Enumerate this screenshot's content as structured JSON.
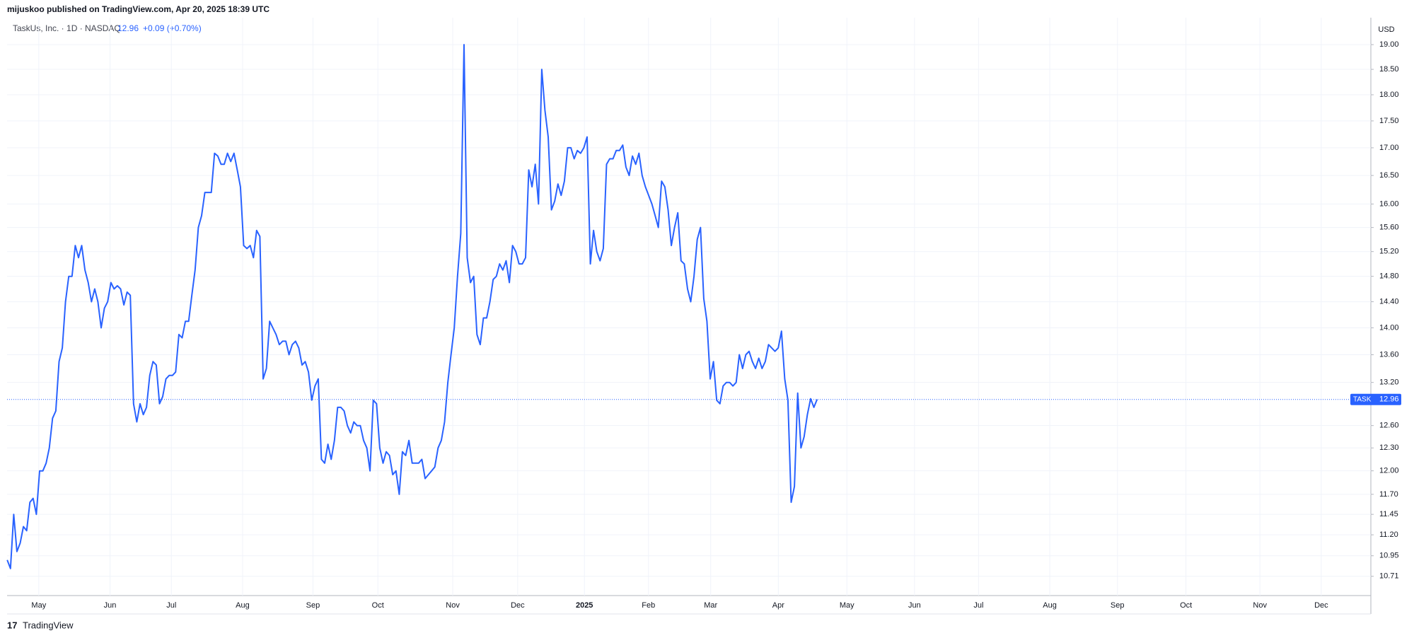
{
  "header": {
    "published": "mijuskoo published on TradingView.com, Apr 20, 2025 18:39 UTC",
    "brand": "TradingView"
  },
  "chart_data": {
    "type": "line",
    "title": "TaskUs, Inc. · 1D · NASDAQ",
    "last_price": 12.96,
    "change": "+0.09 (+0.70%)",
    "currency": "USD",
    "symbol": "TASK",
    "log_scale": true,
    "grid": true,
    "xticks": [
      "May",
      "Jun",
      "Jul",
      "Aug",
      "Sep",
      "Oct",
      "Nov",
      "Dec",
      "2025",
      "Feb",
      "Mar",
      "Apr",
      "May",
      "Jun",
      "Jul",
      "Aug",
      "Sep",
      "Oct",
      "Nov",
      "Dec"
    ],
    "ylim": [
      10.49,
      19.56
    ],
    "yticks": [
      {
        "value": 10.71,
        "label": "10.71"
      },
      {
        "value": 10.95,
        "label": "10.95"
      },
      {
        "value": 11.2,
        "label": "11.20"
      },
      {
        "value": 11.45,
        "label": "11.45"
      },
      {
        "value": 11.7,
        "label": "11.70"
      },
      {
        "value": 12,
        "label": "12.00"
      },
      {
        "value": 12.3,
        "label": "12.30"
      },
      {
        "value": 12.6,
        "label": "12.60"
      },
      {
        "value": 13.2,
        "label": "13.20"
      },
      {
        "value": 13.6,
        "label": "13.60"
      },
      {
        "value": 14,
        "label": "14.00"
      },
      {
        "value": 14.4,
        "label": "14.40"
      },
      {
        "value": 14.8,
        "label": "14.80"
      },
      {
        "value": 15.2,
        "label": "15.20"
      },
      {
        "value": 15.6,
        "label": "15.60"
      },
      {
        "value": 16,
        "label": "16.00"
      },
      {
        "value": 16.5,
        "label": "16.50"
      },
      {
        "value": 17,
        "label": "17.00"
      },
      {
        "value": 17.5,
        "label": "17.50"
      },
      {
        "value": 18,
        "label": "18.00"
      },
      {
        "value": 18.5,
        "label": "18.50"
      },
      {
        "value": 19,
        "label": "19.00"
      }
    ],
    "series": [
      {
        "name": "TASK",
        "color": "#2962ff",
        "values": [
          10.9,
          10.8,
          11.45,
          11.0,
          11.1,
          11.3,
          11.25,
          11.6,
          11.65,
          11.45,
          12.0,
          12.0,
          12.1,
          12.3,
          12.7,
          12.8,
          13.5,
          13.7,
          14.4,
          14.8,
          14.8,
          15.3,
          15.1,
          15.3,
          14.9,
          14.7,
          14.4,
          14.6,
          14.4,
          14.0,
          14.3,
          14.4,
          14.7,
          14.6,
          14.65,
          14.6,
          14.35,
          14.55,
          14.5,
          12.9,
          12.65,
          12.9,
          12.75,
          12.85,
          13.3,
          13.5,
          13.45,
          12.9,
          13.0,
          13.25,
          13.3,
          13.3,
          13.35,
          13.9,
          13.85,
          14.1,
          14.1,
          14.5,
          14.9,
          15.6,
          15.8,
          16.2,
          16.2,
          16.2,
          16.9,
          16.85,
          16.7,
          16.7,
          16.9,
          16.75,
          16.9,
          16.6,
          16.3,
          15.3,
          15.25,
          15.3,
          15.1,
          15.55,
          15.45,
          13.25,
          13.4,
          14.1,
          14.0,
          13.9,
          13.75,
          13.8,
          13.8,
          13.6,
          13.75,
          13.8,
          13.7,
          13.45,
          13.5,
          13.35,
          12.95,
          13.15,
          13.25,
          12.15,
          12.1,
          12.35,
          12.15,
          12.4,
          12.85,
          12.85,
          12.8,
          12.6,
          12.5,
          12.65,
          12.6,
          12.6,
          12.4,
          12.3,
          12.0,
          12.95,
          12.9,
          12.3,
          12.1,
          12.25,
          12.2,
          11.95,
          12.0,
          11.7,
          12.25,
          12.2,
          12.4,
          12.1,
          12.1,
          12.1,
          12.15,
          11.9,
          11.95,
          12.0,
          12.05,
          12.3,
          12.4,
          12.65,
          13.2,
          13.6,
          14.0,
          14.8,
          15.5,
          19.0,
          15.1,
          14.7,
          14.8,
          13.9,
          13.75,
          14.15,
          14.15,
          14.4,
          14.75,
          14.8,
          15.0,
          14.9,
          15.05,
          14.7,
          15.3,
          15.2,
          15.0,
          15.0,
          15.1,
          16.6,
          16.3,
          16.7,
          16.0,
          18.5,
          17.7,
          17.2,
          15.9,
          16.05,
          16.35,
          16.15,
          16.4,
          17.0,
          17.0,
          16.8,
          16.95,
          16.9,
          17.0,
          17.2,
          15.0,
          15.55,
          15.2,
          15.05,
          15.25,
          16.7,
          16.8,
          16.8,
          16.95,
          16.95,
          17.05,
          16.65,
          16.5,
          16.85,
          16.7,
          16.9,
          16.5,
          16.3,
          16.15,
          16.0,
          15.8,
          15.6,
          16.4,
          16.3,
          15.9,
          15.3,
          15.6,
          15.85,
          15.05,
          15.0,
          14.6,
          14.4,
          14.8,
          15.4,
          15.6,
          14.45,
          14.1,
          13.25,
          13.5,
          12.95,
          12.9,
          13.15,
          13.2,
          13.2,
          13.15,
          13.2,
          13.6,
          13.4,
          13.6,
          13.65,
          13.5,
          13.4,
          13.55,
          13.4,
          13.5,
          13.75,
          13.7,
          13.65,
          13.7,
          13.95,
          13.25,
          12.95,
          11.6,
          11.8,
          13.05,
          12.3,
          12.45,
          12.75,
          12.97,
          12.85,
          12.96
        ]
      }
    ]
  }
}
